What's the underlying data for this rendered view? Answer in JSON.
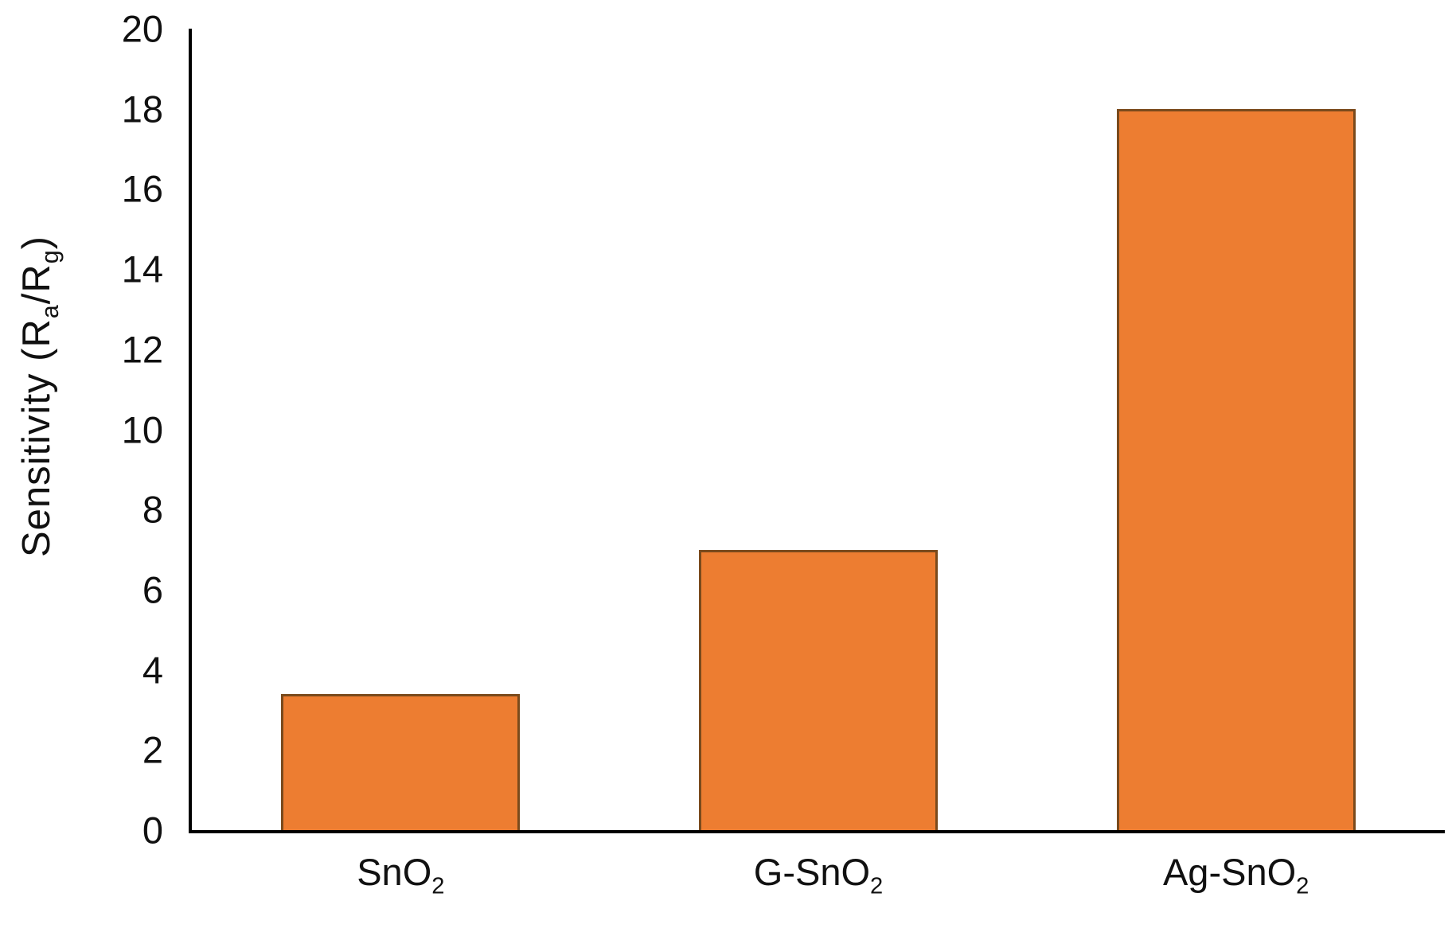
{
  "chart_data": {
    "type": "bar",
    "title": "",
    "ylabel_plain": "Sensitivity (Ra/Rg)",
    "ylabel_parts": {
      "p1": "Sensitivity (R",
      "s1": "a",
      "p2": "/R",
      "s2": "g",
      "p3": ")"
    },
    "categories": [
      {
        "text": "SnO",
        "sub": "2"
      },
      {
        "text": "G-SnO",
        "sub": "2"
      },
      {
        "text": "Ag-SnO",
        "sub": "2"
      }
    ],
    "values": [
      3.4,
      7,
      18
    ],
    "ylim": [
      0,
      20
    ],
    "ytick_step": 2,
    "yticks": [
      "0",
      "2",
      "4",
      "6",
      "8",
      "10",
      "12",
      "14",
      "16",
      "18",
      "20"
    ],
    "grid": false,
    "legend": null,
    "colors": {
      "bar_fill": "#ED7D31",
      "bar_border": "#7A4A1C",
      "axis": "#000000",
      "text": "#111111",
      "background": "#FFFFFF"
    }
  }
}
